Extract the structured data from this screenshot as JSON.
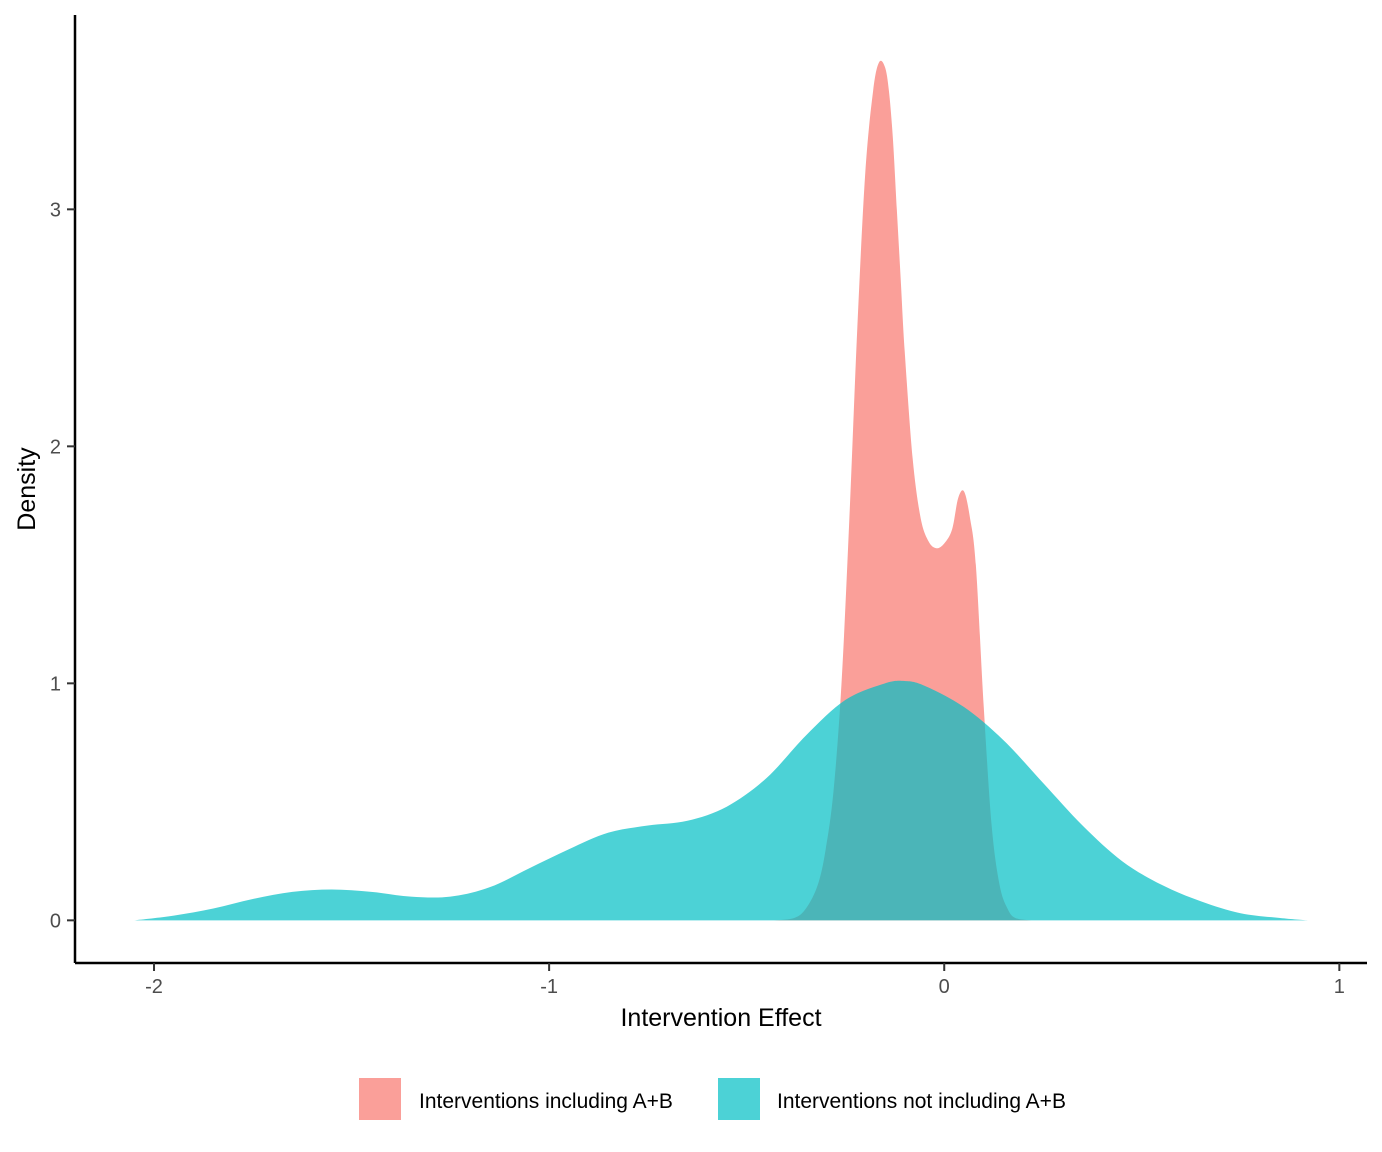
{
  "chart_data": {
    "type": "area",
    "subtype": "density",
    "title": "",
    "xlabel": "Intervention Effect",
    "ylabel": "Density",
    "xlim": [
      -2.2,
      1.07
    ],
    "ylim": [
      -0.18,
      3.82
    ],
    "x_ticks": [
      -2,
      -1,
      0,
      1
    ],
    "y_ticks": [
      0,
      1,
      2,
      3
    ],
    "x_tick_labels": [
      "-2",
      "-1",
      "0",
      "1"
    ],
    "y_tick_labels": [
      "0",
      "1",
      "2",
      "3"
    ],
    "grid": false,
    "legend_position": "bottom",
    "series": [
      {
        "name": "Interventions including A+B",
        "color": "#F8766D",
        "opacity": 0.7,
        "x": [
          -0.43,
          -0.38,
          -0.35,
          -0.32,
          -0.3,
          -0.28,
          -0.26,
          -0.24,
          -0.22,
          -0.2,
          -0.18,
          -0.165,
          -0.15,
          -0.14,
          -0.13,
          -0.12,
          -0.11,
          -0.1,
          -0.08,
          -0.06,
          -0.04,
          -0.02,
          0.0,
          0.02,
          0.035,
          0.05,
          0.065,
          0.08,
          0.1,
          0.12,
          0.14,
          0.16,
          0.18,
          0.22
        ],
        "y": [
          0.0,
          0.01,
          0.05,
          0.15,
          0.3,
          0.55,
          1.0,
          1.7,
          2.5,
          3.15,
          3.5,
          3.62,
          3.6,
          3.5,
          3.3,
          3.0,
          2.7,
          2.4,
          1.95,
          1.7,
          1.6,
          1.57,
          1.59,
          1.65,
          1.78,
          1.81,
          1.7,
          1.5,
          0.9,
          0.4,
          0.15,
          0.05,
          0.01,
          0.0
        ]
      },
      {
        "name": "Interventions not including A+B",
        "color": "#00BFC4",
        "opacity": 0.7,
        "x": [
          -2.05,
          -1.95,
          -1.85,
          -1.75,
          -1.65,
          -1.55,
          -1.45,
          -1.35,
          -1.25,
          -1.15,
          -1.05,
          -0.95,
          -0.85,
          -0.75,
          -0.65,
          -0.55,
          -0.45,
          -0.35,
          -0.25,
          -0.15,
          -0.1,
          -0.05,
          0.05,
          0.15,
          0.25,
          0.35,
          0.45,
          0.55,
          0.65,
          0.75,
          0.85,
          0.92
        ],
        "y": [
          0.0,
          0.02,
          0.05,
          0.09,
          0.12,
          0.13,
          0.12,
          0.1,
          0.1,
          0.14,
          0.22,
          0.3,
          0.37,
          0.4,
          0.42,
          0.48,
          0.6,
          0.78,
          0.93,
          1.0,
          1.01,
          0.99,
          0.9,
          0.76,
          0.58,
          0.4,
          0.25,
          0.15,
          0.08,
          0.03,
          0.01,
          0.0
        ]
      }
    ]
  }
}
